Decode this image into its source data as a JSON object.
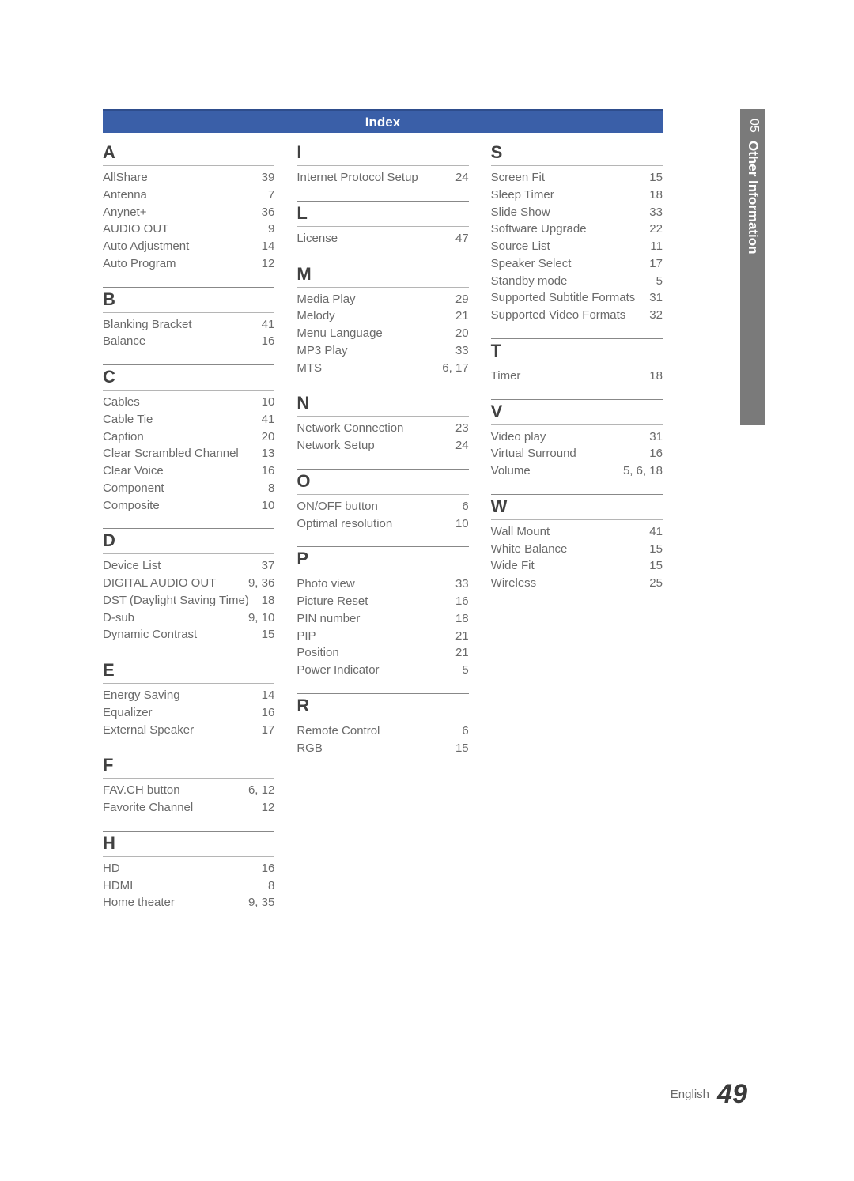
{
  "sidebar": {
    "num": "05",
    "label": "Other Information"
  },
  "header": {
    "title": "Index"
  },
  "columns": [
    {
      "sections": [
        {
          "letter": "A",
          "entries": [
            {
              "term": "AllShare",
              "page": "39"
            },
            {
              "term": "Antenna",
              "page": "7"
            },
            {
              "term": "Anynet+",
              "page": "36"
            },
            {
              "term": "AUDIO OUT",
              "page": "9"
            },
            {
              "term": "Auto Adjustment",
              "page": "14"
            },
            {
              "term": "Auto Program",
              "page": "12"
            }
          ]
        },
        {
          "letter": "B",
          "entries": [
            {
              "term": "Blanking Bracket",
              "page": "41"
            },
            {
              "term": "Balance",
              "page": "16"
            }
          ]
        },
        {
          "letter": "C",
          "entries": [
            {
              "term": "Cables",
              "page": "10"
            },
            {
              "term": "Cable Tie",
              "page": "41"
            },
            {
              "term": "Caption",
              "page": "20"
            },
            {
              "term": "Clear Scrambled Channel",
              "page": "13"
            },
            {
              "term": "Clear Voice",
              "page": "16"
            },
            {
              "term": "Component",
              "page": "8"
            },
            {
              "term": "Composite",
              "page": "10"
            }
          ]
        },
        {
          "letter": "D",
          "entries": [
            {
              "term": "Device List",
              "page": "37"
            },
            {
              "term": "DIGITAL AUDIO OUT",
              "page": "9, 36"
            },
            {
              "term": "DST (Daylight Saving Time)",
              "page": "18"
            },
            {
              "term": "D-sub",
              "page": "9, 10"
            },
            {
              "term": "Dynamic Contrast",
              "page": "15"
            }
          ]
        },
        {
          "letter": "E",
          "entries": [
            {
              "term": "Energy Saving",
              "page": "14"
            },
            {
              "term": "Equalizer",
              "page": "16"
            },
            {
              "term": "External Speaker",
              "page": "17"
            }
          ]
        },
        {
          "letter": "F",
          "entries": [
            {
              "term": "FAV.CH button",
              "page": "6, 12"
            },
            {
              "term": "Favorite Channel",
              "page": "12"
            }
          ]
        },
        {
          "letter": "H",
          "entries": [
            {
              "term": "HD",
              "page": "16"
            },
            {
              "term": "HDMI",
              "page": "8"
            },
            {
              "term": "Home theater",
              "page": "9, 35"
            }
          ]
        }
      ]
    },
    {
      "sections": [
        {
          "letter": "I",
          "entries": [
            {
              "term": "Internet Protocol Setup",
              "page": "24"
            }
          ]
        },
        {
          "letter": "L",
          "entries": [
            {
              "term": "License",
              "page": "47"
            }
          ]
        },
        {
          "letter": "M",
          "entries": [
            {
              "term": "Media Play",
              "page": "29"
            },
            {
              "term": "Melody",
              "page": "21"
            },
            {
              "term": "Menu Language",
              "page": "20"
            },
            {
              "term": "MP3 Play",
              "page": "33"
            },
            {
              "term": "MTS",
              "page": "6, 17"
            }
          ]
        },
        {
          "letter": "N",
          "entries": [
            {
              "term": "Network Connection",
              "page": "23"
            },
            {
              "term": "Network Setup",
              "page": "24"
            }
          ]
        },
        {
          "letter": "O",
          "entries": [
            {
              "term": "ON/OFF button",
              "page": "6"
            },
            {
              "term": "Optimal resolution",
              "page": "10"
            }
          ]
        },
        {
          "letter": "P",
          "entries": [
            {
              "term": "Photo view",
              "page": "33"
            },
            {
              "term": "Picture Reset",
              "page": "16"
            },
            {
              "term": "PIN number",
              "page": "18"
            },
            {
              "term": "PIP",
              "page": "21"
            },
            {
              "term": "Position",
              "page": "21"
            },
            {
              "term": "Power Indicator",
              "page": "5"
            }
          ]
        },
        {
          "letter": "R",
          "entries": [
            {
              "term": "Remote Control",
              "page": "6"
            },
            {
              "term": "RGB",
              "page": "15"
            }
          ]
        }
      ]
    },
    {
      "sections": [
        {
          "letter": "S",
          "entries": [
            {
              "term": "Screen Fit",
              "page": "15"
            },
            {
              "term": "Sleep Timer",
              "page": "18"
            },
            {
              "term": "Slide Show",
              "page": "33"
            },
            {
              "term": "Software Upgrade",
              "page": "22"
            },
            {
              "term": "Source List",
              "page": "11"
            },
            {
              "term": "Speaker Select",
              "page": "17"
            },
            {
              "term": "Standby mode",
              "page": "5"
            },
            {
              "term": "Supported Subtitle Formats",
              "page": "31"
            },
            {
              "term": "Supported Video Formats",
              "page": "32"
            }
          ]
        },
        {
          "letter": "T",
          "entries": [
            {
              "term": "Timer",
              "page": "18"
            }
          ]
        },
        {
          "letter": "V",
          "entries": [
            {
              "term": "Video play",
              "page": "31"
            },
            {
              "term": "Virtual Surround",
              "page": "16"
            },
            {
              "term": "Volume",
              "page": "5, 6, 18"
            }
          ]
        },
        {
          "letter": "W",
          "entries": [
            {
              "term": "Wall Mount",
              "page": "41"
            },
            {
              "term": "White Balance",
              "page": "15"
            },
            {
              "term": "Wide Fit",
              "page": "15"
            },
            {
              "term": "Wireless",
              "page": "25"
            }
          ]
        }
      ]
    }
  ],
  "footer": {
    "lang": "English",
    "page": "49"
  }
}
